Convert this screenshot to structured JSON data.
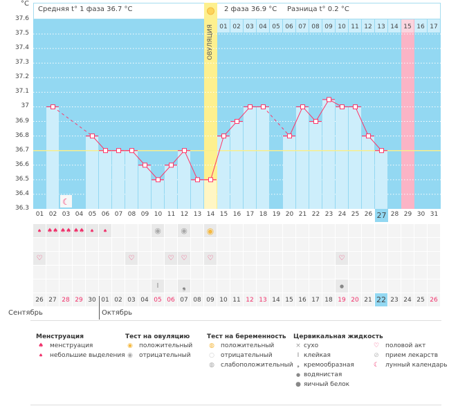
{
  "header": {
    "unit": "°C",
    "phase1_label": "Средняя t° 1 фаза",
    "phase1_value": "36.7 °C",
    "phase2_label": "2 фаза",
    "phase2_value": "36.9 °C",
    "diff_label": "Разница t°",
    "diff_value": "0.2 °C",
    "ovulation_label": "ОВУЛЯЦИЯ"
  },
  "colors": {
    "background": "#93d8f2",
    "bar": "#cdeefb",
    "ovulation": "#fdf08f",
    "expected_period": "#fbb4c6",
    "line": "#ff3366",
    "cover_line": "#f5ea8a"
  },
  "chart_data": {
    "type": "line",
    "ylim": [
      36.3,
      37.6
    ],
    "yticks": [
      "37.6",
      "37.5",
      "37.4",
      "37.3",
      "37.2",
      "37.1",
      "37",
      "36.9",
      "36.8",
      "36.7",
      "36.6",
      "36.5",
      "36.4",
      "36.3"
    ],
    "x": [
      "01",
      "02",
      "03",
      "04",
      "05",
      "06",
      "07",
      "08",
      "09",
      "10",
      "11",
      "12",
      "13",
      "14",
      "15",
      "16",
      "17",
      "18",
      "19",
      "20",
      "21",
      "22",
      "23",
      "24",
      "25",
      "26",
      "27",
      "28",
      "29",
      "30",
      "31"
    ],
    "values": [
      null,
      37.0,
      null,
      null,
      36.8,
      36.7,
      36.7,
      36.7,
      36.6,
      36.5,
      36.6,
      36.7,
      36.5,
      36.5,
      36.8,
      36.9,
      37.0,
      37.0,
      null,
      36.8,
      37.0,
      36.9,
      37.05,
      37.0,
      37.0,
      36.8,
      36.7,
      null,
      null,
      null,
      null
    ],
    "cover_line": 36.7,
    "ovulation_day": 14,
    "expected_period_day": 29,
    "today_day": 27,
    "grid": true,
    "phase2_labels": [
      "01",
      "02",
      "03",
      "04",
      "05",
      "06",
      "07",
      "08",
      "09",
      "10",
      "11",
      "12",
      "13",
      "14",
      "15",
      "16",
      "17"
    ],
    "moon_day": 3
  },
  "rows": {
    "menstruation": {
      "1": "small",
      "2": "heavy",
      "3": "heavy",
      "4": "heavy",
      "5": "small",
      "6": "small"
    },
    "ovulation_test": {
      "10": "negative",
      "12": "negative",
      "14": "positive"
    },
    "intercourse": [
      1,
      8,
      11,
      12,
      14,
      24
    ],
    "cervical": {
      "10": "sticky",
      "12": "creamy",
      "24": "watery"
    }
  },
  "calendar": {
    "dates": [
      "26",
      "27",
      "28",
      "29",
      "30",
      "01",
      "02",
      "03",
      "04",
      "05",
      "06",
      "07",
      "08",
      "09",
      "10",
      "11",
      "12",
      "13",
      "14",
      "15",
      "16",
      "17",
      "18",
      "19",
      "20",
      "21",
      "22",
      "23",
      "24",
      "25",
      "26"
    ],
    "weekend_index": [
      2,
      3,
      9,
      10,
      16,
      17,
      23,
      24,
      30
    ],
    "months": [
      "Сентябрь",
      "Октябрь"
    ]
  },
  "legend": {
    "menstruation": {
      "title": "Менструация",
      "items": [
        "менструация",
        "небольшие выделения"
      ]
    },
    "ovulation_test": {
      "title": "Тест на овуляцию",
      "items": [
        "положительный",
        "отрицательный"
      ]
    },
    "pregnancy_test": {
      "title": "Тест на беременность",
      "items": [
        "положительный",
        "отрицательный",
        "слабоположительный"
      ]
    },
    "cervical": {
      "title": "Цервикальная жидкость",
      "items": [
        "сухо",
        "клейкая",
        "кремообразная",
        "водянистая",
        "яичный белок"
      ]
    },
    "other": {
      "items": [
        "половой акт",
        "прием лекарств",
        "лунный календарь"
      ]
    }
  }
}
